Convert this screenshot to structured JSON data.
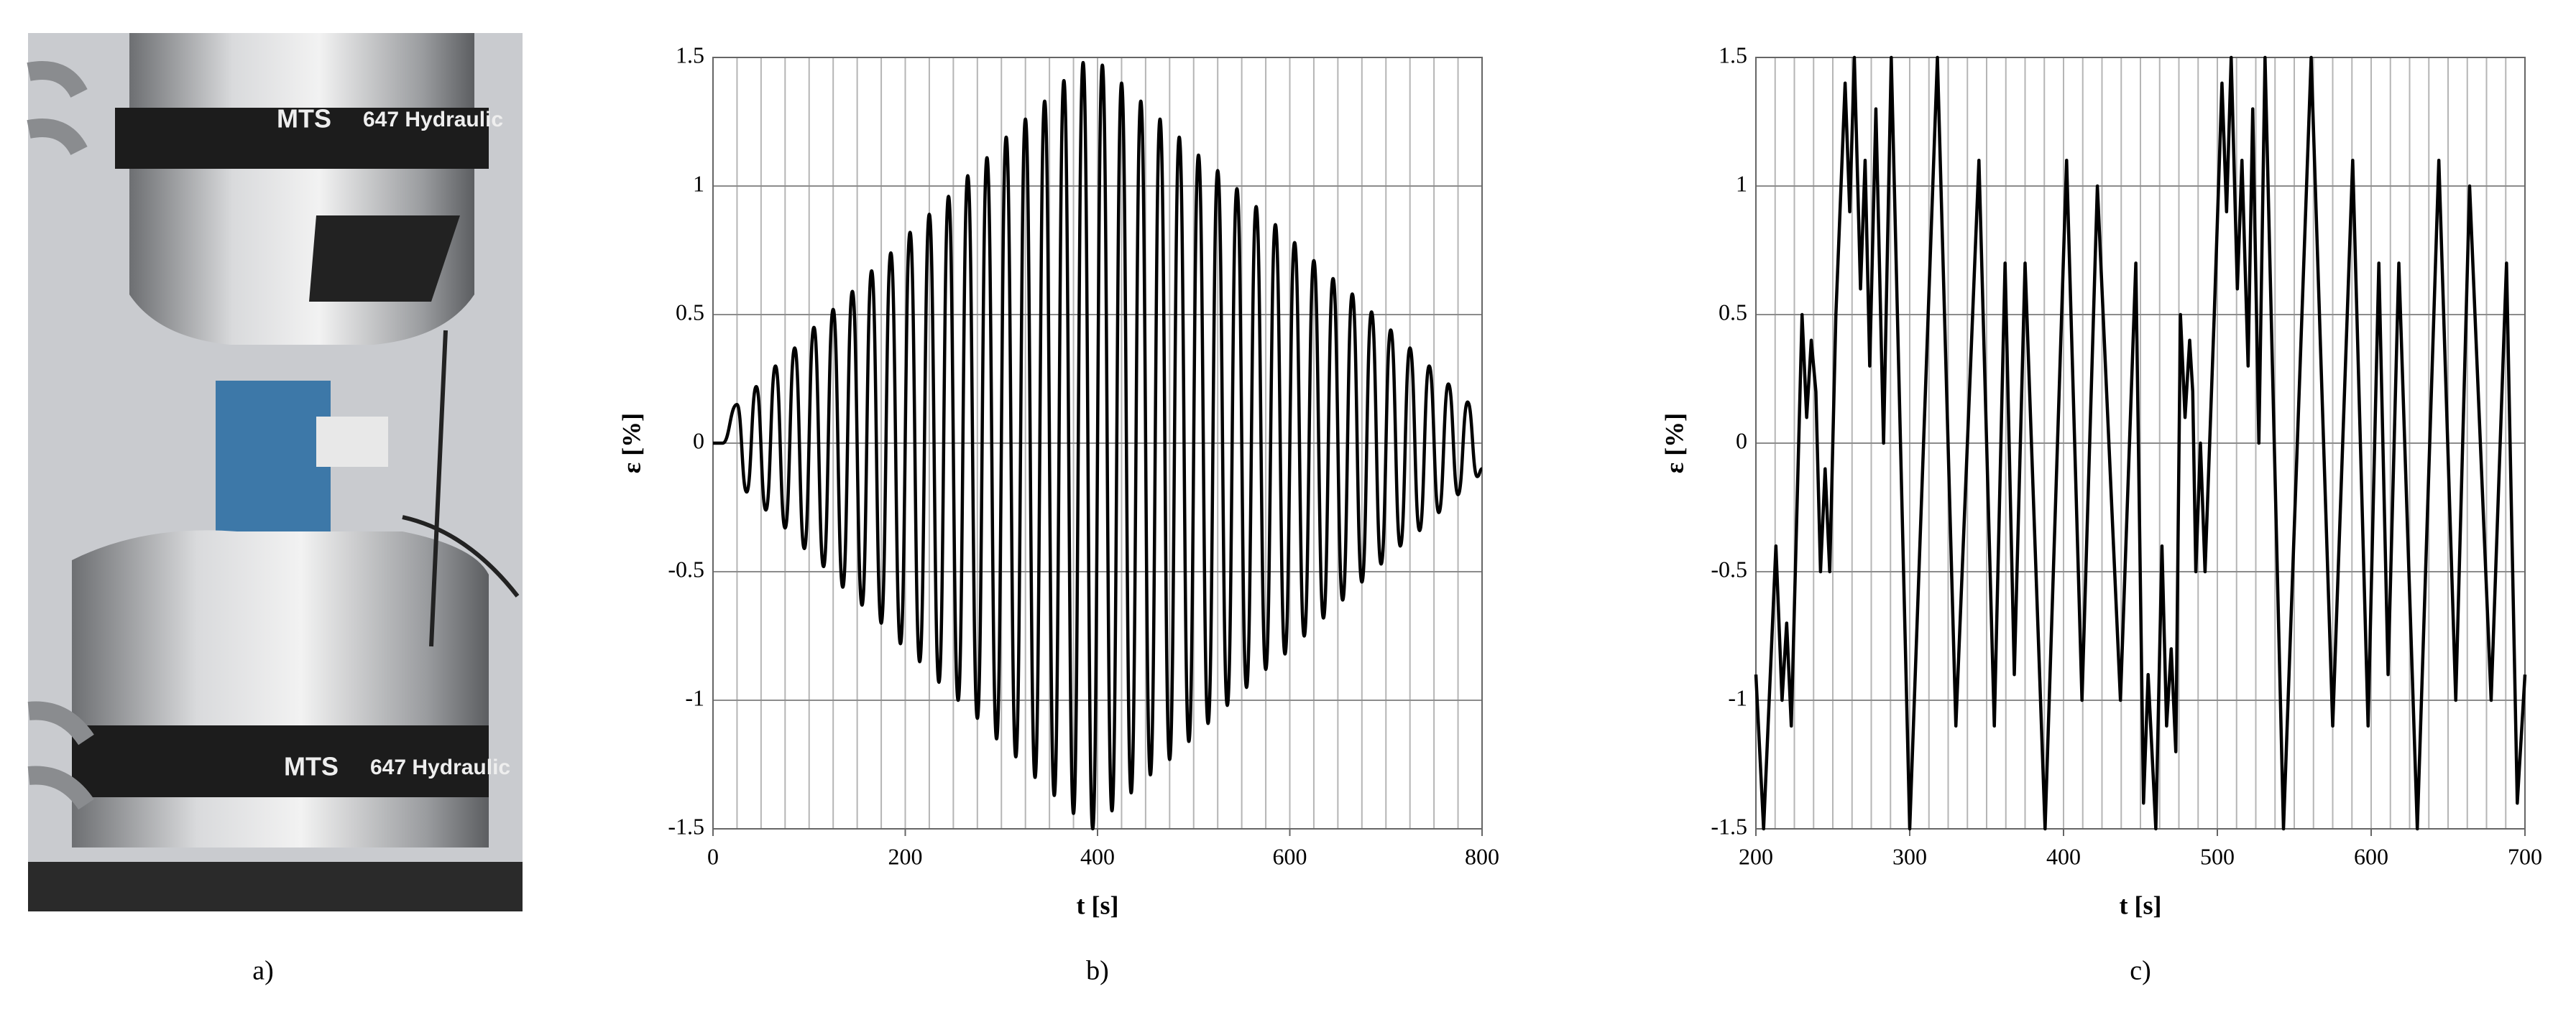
{
  "photo": {
    "caption": "a)",
    "labels": [
      "MTS",
      "647 Hydraulic",
      "MTS",
      "647 Hydraulic"
    ]
  },
  "chart_data": [
    {
      "type": "line",
      "caption": "b)",
      "xlabel": "t [s]",
      "ylabel": "ε [%]",
      "line_style": "smooth",
      "color": "#000000",
      "xlim": [
        0,
        800
      ],
      "xticks": [
        0,
        200,
        400,
        600,
        800
      ],
      "x_grid_step": 25,
      "ylim": [
        -1.5,
        1.5
      ],
      "yticks": [
        1.5,
        1,
        0.5,
        0,
        -0.5,
        -1,
        -1.5
      ],
      "grid": true,
      "x": [
        0,
        10,
        25,
        35,
        45,
        55,
        65,
        75,
        85,
        95,
        105,
        115,
        125,
        135,
        145,
        155,
        165,
        175,
        185,
        195,
        205,
        215,
        225,
        235,
        245,
        255,
        265,
        275,
        285,
        295,
        305,
        315,
        325,
        335,
        345,
        355,
        365,
        375,
        385,
        395,
        405,
        415,
        425,
        435,
        445,
        455,
        465,
        475,
        485,
        495,
        505,
        515,
        525,
        535,
        545,
        555,
        565,
        575,
        585,
        595,
        605,
        615,
        625,
        635,
        645,
        655,
        665,
        675,
        685,
        695,
        705,
        715,
        725,
        735,
        745,
        755,
        765,
        775,
        785,
        795,
        800
      ],
      "values": [
        0,
        0,
        0.15,
        -0.19,
        0.22,
        -0.26,
        0.3,
        -0.33,
        0.37,
        -0.41,
        0.45,
        -0.48,
        0.52,
        -0.56,
        0.59,
        -0.63,
        0.67,
        -0.7,
        0.74,
        -0.78,
        0.82,
        -0.85,
        0.89,
        -0.93,
        0.96,
        -1.0,
        1.04,
        -1.07,
        1.11,
        -1.15,
        1.19,
        -1.22,
        1.26,
        -1.3,
        1.33,
        -1.37,
        1.41,
        -1.44,
        1.48,
        -1.5,
        1.47,
        -1.43,
        1.4,
        -1.36,
        1.33,
        -1.29,
        1.26,
        -1.23,
        1.19,
        -1.16,
        1.12,
        -1.09,
        1.06,
        -1.02,
        0.99,
        -0.95,
        0.92,
        -0.88,
        0.85,
        -0.82,
        0.78,
        -0.75,
        0.71,
        -0.68,
        0.64,
        -0.61,
        0.58,
        -0.54,
        0.51,
        -0.47,
        0.44,
        -0.4,
        0.37,
        -0.34,
        0.3,
        -0.27,
        0.23,
        -0.2,
        0.16,
        -0.13,
        -0.1
      ]
    },
    {
      "type": "line",
      "caption": "c)",
      "xlabel": "t [s]",
      "ylabel": "ε [%]",
      "line_style": "straight",
      "color": "#000000",
      "xlim": [
        200,
        700
      ],
      "xticks": [
        200,
        300,
        400,
        500,
        600,
        700
      ],
      "x_grid_step": 12.5,
      "ylim": [
        -1.5,
        1.5
      ],
      "yticks": [
        1.5,
        1,
        0.5,
        0,
        -0.5,
        -1,
        -1.5
      ],
      "grid": true,
      "x": [
        200,
        205,
        213,
        217,
        220,
        223,
        230,
        233,
        236,
        239,
        242,
        245,
        248,
        252,
        258,
        261,
        264,
        268,
        271,
        274,
        278,
        283,
        288,
        300,
        318,
        330,
        345,
        355,
        362,
        368,
        375,
        388,
        402,
        412,
        422,
        437,
        447,
        452,
        455,
        460,
        464,
        467,
        470,
        473,
        476,
        479,
        482,
        484,
        486,
        489,
        492,
        498,
        503,
        506,
        509,
        513,
        516,
        520,
        523,
        527,
        531,
        543,
        561,
        575,
        588,
        598,
        605,
        611,
        618,
        630,
        644,
        655,
        664,
        678,
        688,
        695,
        700
      ],
      "values": [
        -0.9,
        -1.5,
        -0.4,
        -1.0,
        -0.7,
        -1.1,
        0.5,
        0.1,
        0.4,
        0.2,
        -0.5,
        -0.1,
        -0.5,
        0.5,
        1.4,
        0.9,
        1.5,
        0.6,
        1.1,
        0.3,
        1.3,
        0,
        1.5,
        -1.5,
        1.5,
        -1.1,
        1.1,
        -1.1,
        0.7,
        -0.9,
        0.7,
        -1.5,
        1.1,
        -1.0,
        1.0,
        -1.0,
        0.7,
        -1.4,
        -0.9,
        -1.5,
        -0.4,
        -1.1,
        -0.8,
        -1.2,
        0.5,
        0.1,
        0.4,
        0.2,
        -0.5,
        0,
        -0.5,
        0.5,
        1.4,
        0.9,
        1.5,
        0.6,
        1.1,
        0.3,
        1.3,
        0,
        1.5,
        -1.5,
        1.5,
        -1.1,
        1.1,
        -1.1,
        0.7,
        -0.9,
        0.7,
        -1.5,
        1.1,
        -1.0,
        1.0,
        -1.0,
        0.7,
        -1.4,
        -0.9
      ]
    }
  ]
}
